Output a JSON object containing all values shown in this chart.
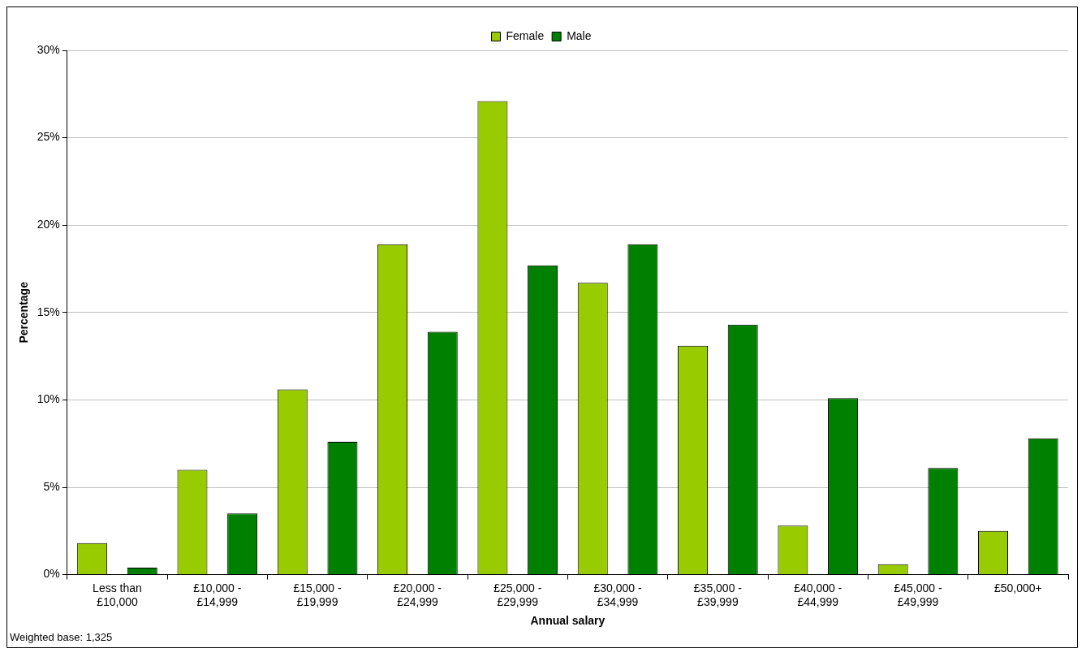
{
  "chart_data": {
    "type": "bar",
    "xlabel": "Annual salary",
    "ylabel": "Percentage",
    "categories": [
      "Less than £10,000",
      "£10,000 - £14,999",
      "£15,000 - £19,999",
      "£20,000 - £24,999",
      "£25,000 - £29,999",
      "£30,000 - £34,999",
      "£35,000 - £39,999",
      "£40,000 - £44,999",
      "£45,000 - £49,999",
      "£50,000+"
    ],
    "series": [
      {
        "name": "Female",
        "color": "#99cc00",
        "values": [
          1.8,
          6.0,
          10.6,
          18.9,
          27.1,
          16.7,
          13.1,
          2.8,
          0.6,
          2.5
        ]
      },
      {
        "name": "Male",
        "color": "#008000",
        "values": [
          0.4,
          3.5,
          7.6,
          13.9,
          17.7,
          18.9,
          14.3,
          10.1,
          6.1,
          7.8
        ]
      }
    ],
    "ylim": [
      0,
      30
    ],
    "yticks": [
      {
        "value": 0,
        "label": "0%"
      },
      {
        "value": 5,
        "label": "5%"
      },
      {
        "value": 10,
        "label": "10%"
      },
      {
        "value": 15,
        "label": "15%"
      },
      {
        "value": 20,
        "label": "20%"
      },
      {
        "value": 25,
        "label": "25%"
      },
      {
        "value": 30,
        "label": "30%"
      }
    ],
    "grid": "y",
    "legend": "top",
    "annotations": [
      "Weighted base: 1,325"
    ]
  }
}
